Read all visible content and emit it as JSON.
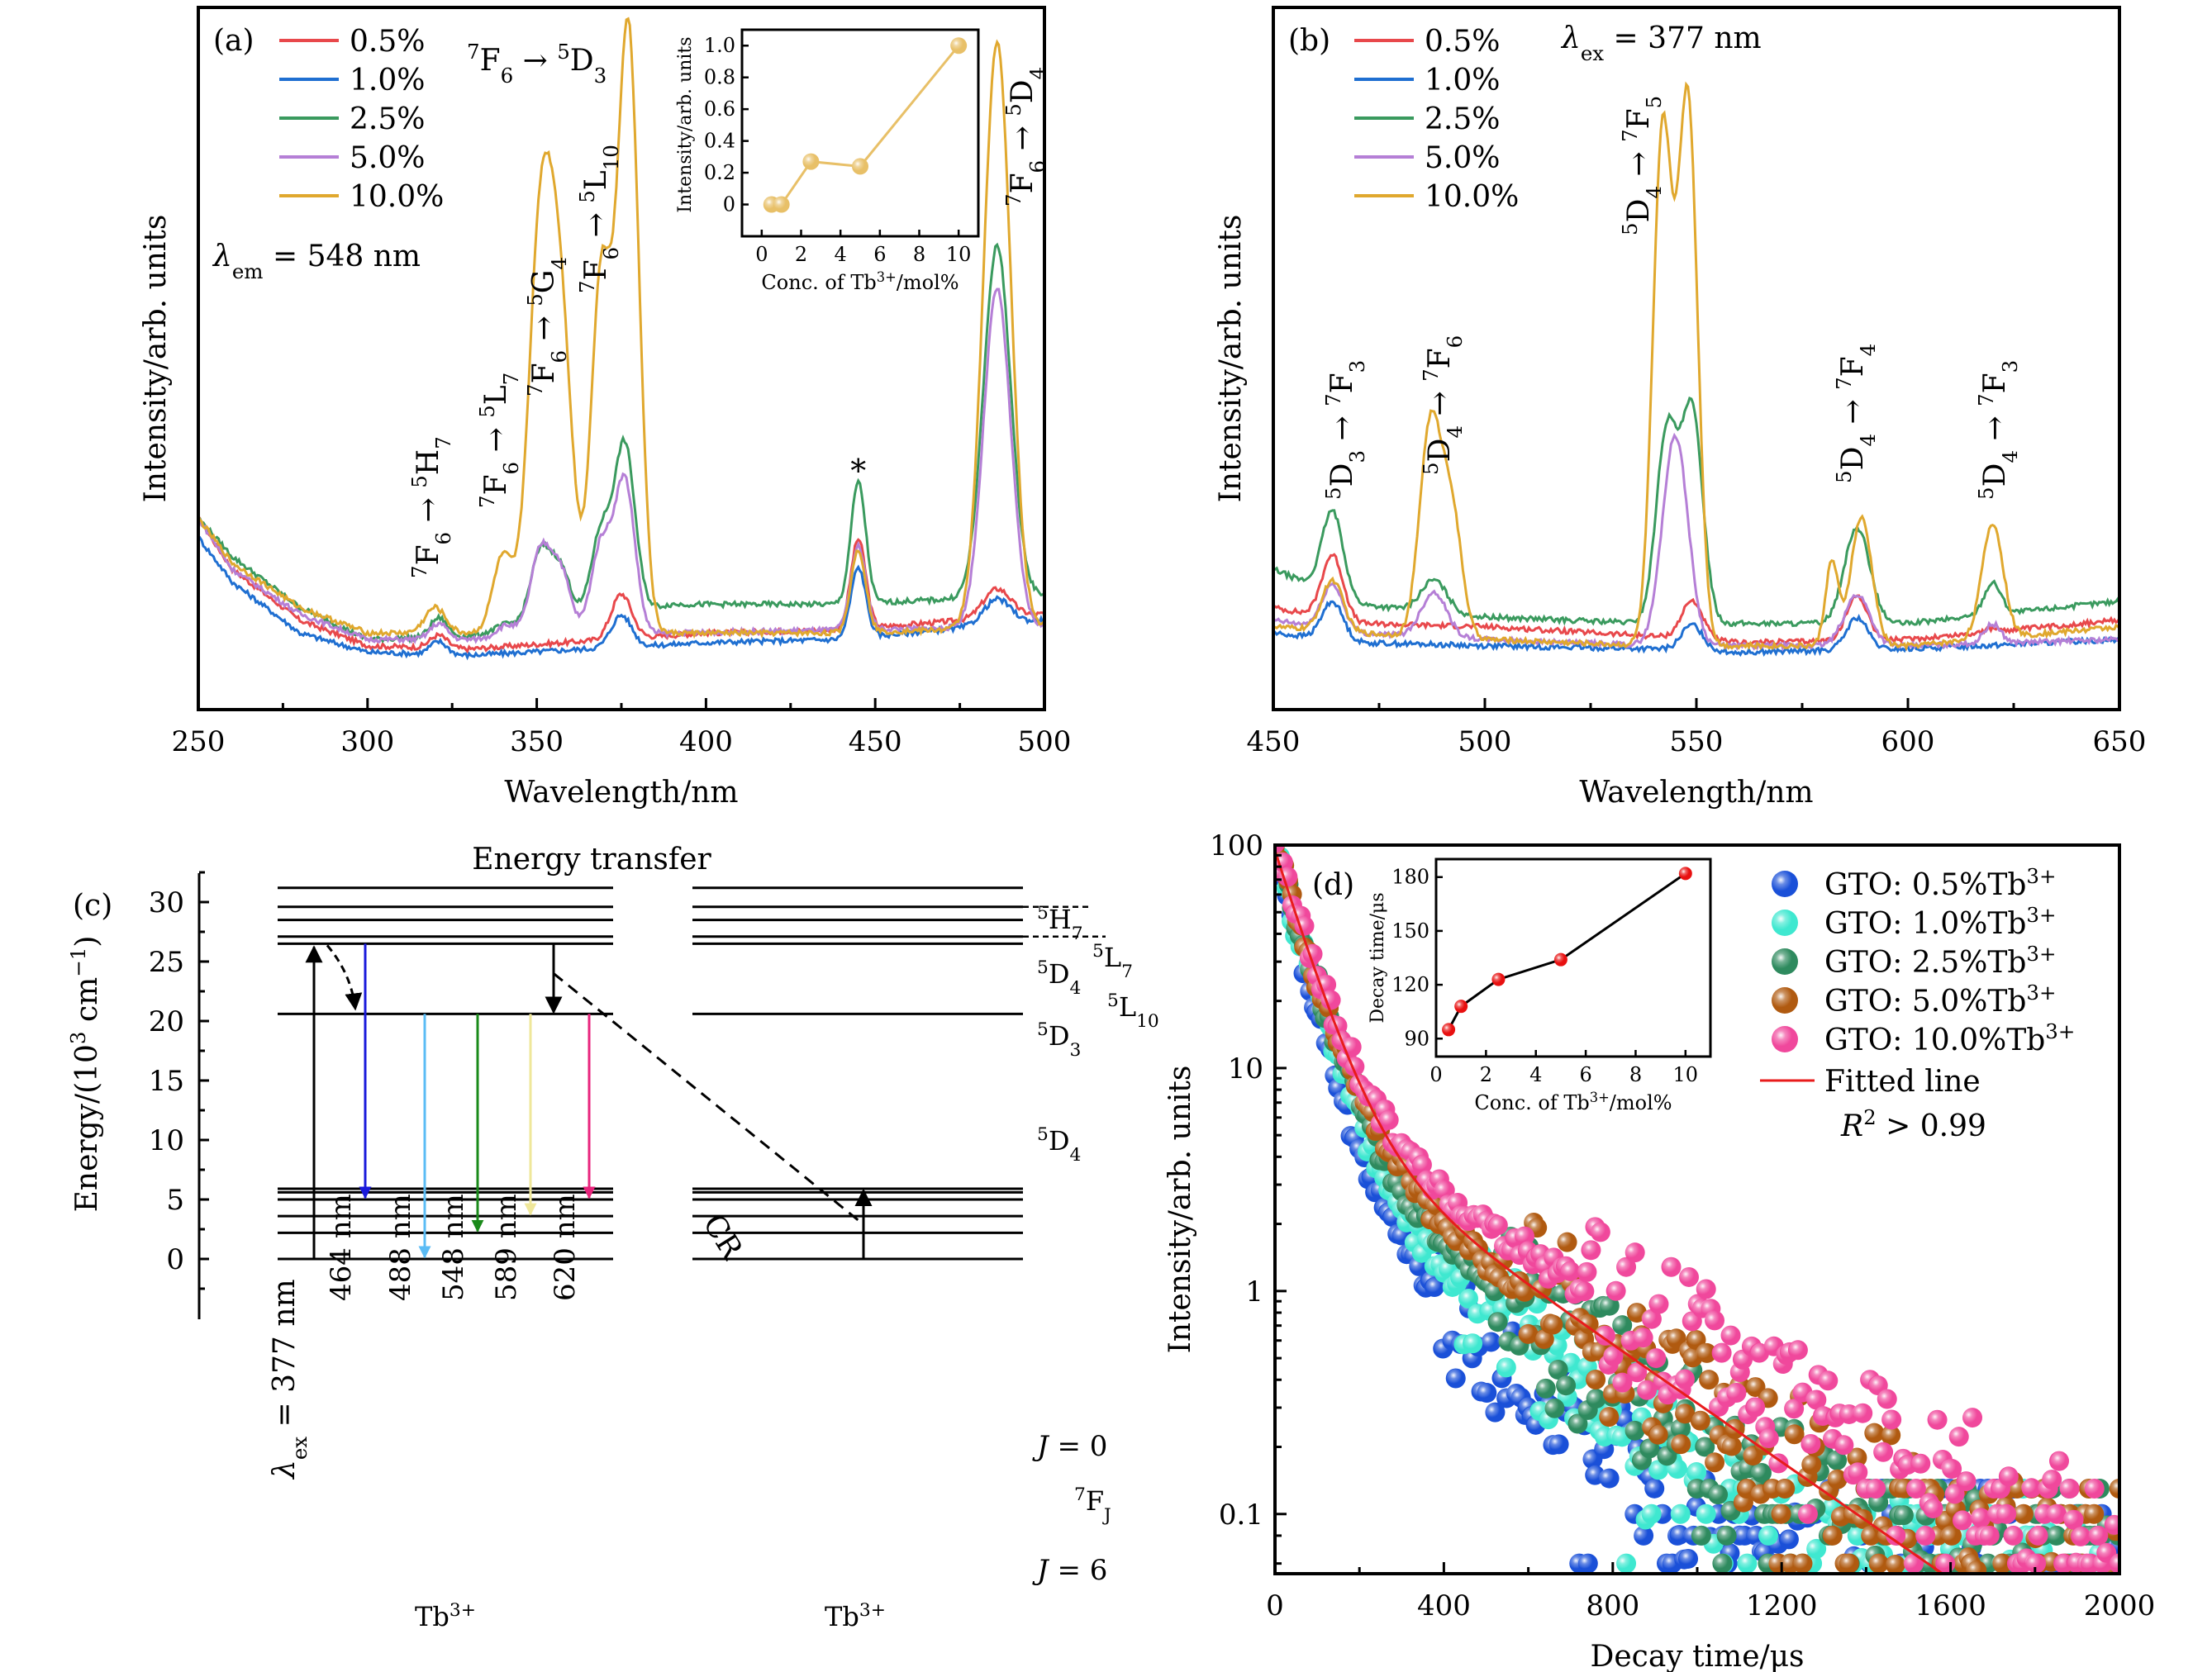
{
  "chart_data": [
    {
      "id": "a",
      "type": "line",
      "panel_label": "(a)",
      "title": "",
      "xlabel": "Wavelength/nm",
      "ylabel": "Intensity/arb. units",
      "xlim": [
        250,
        500
      ],
      "ylim": [
        0,
        1.1
      ],
      "xticks": [
        250,
        300,
        350,
        400,
        450,
        500
      ],
      "yticks_shown": false,
      "grid": false,
      "legend_position": "top-left",
      "annotation_lambda": "λem = 548 nm",
      "peak_labels": [
        {
          "text": "7F6 → 5H7",
          "x": 320
        },
        {
          "text": "7F6 → 5L7",
          "x": 340
        },
        {
          "text": "7F6 → 5G4",
          "x": 351
        },
        {
          "text": "7F6 → 5L10",
          "x": 369
        },
        {
          "text": "7F6 → 5D3",
          "x": 377
        },
        {
          "text": "7F6 → 5D4",
          "x": 486
        },
        {
          "text": "*",
          "x": 445
        }
      ],
      "series": [
        {
          "name": "0.5%",
          "color": "#e8484b",
          "baseline": [
            [
              250,
              0.3
            ],
            [
              260,
              0.22
            ],
            [
              280,
              0.14
            ],
            [
              300,
              0.1
            ],
            [
              330,
              0.095
            ],
            [
              400,
              0.12
            ],
            [
              440,
              0.125
            ],
            [
              500,
              0.15
            ]
          ],
          "peaks": [
            [
              321,
              0.02,
              2.5
            ],
            [
              375,
              0.07,
              3
            ],
            [
              445,
              0.14,
              2.2
            ],
            [
              486,
              0.045,
              4
            ]
          ]
        },
        {
          "name": "1.0%",
          "color": "#1f6fd1",
          "baseline": [
            [
              250,
              0.27
            ],
            [
              260,
              0.2
            ],
            [
              280,
              0.12
            ],
            [
              300,
              0.09
            ],
            [
              330,
              0.085
            ],
            [
              400,
              0.105
            ],
            [
              440,
              0.11
            ],
            [
              500,
              0.14
            ]
          ],
          "peaks": [
            [
              321,
              0.02,
              2.5
            ],
            [
              375,
              0.05,
              3
            ],
            [
              445,
              0.11,
              2.2
            ],
            [
              486,
              0.04,
              4
            ]
          ]
        },
        {
          "name": "2.5%",
          "color": "#3a9a5e",
          "baseline": [
            [
              250,
              0.3
            ],
            [
              260,
              0.24
            ],
            [
              280,
              0.16
            ],
            [
              300,
              0.11
            ],
            [
              330,
              0.115
            ],
            [
              390,
              0.165
            ],
            [
              440,
              0.165
            ],
            [
              500,
              0.18
            ]
          ],
          "peaks": [
            [
              321,
              0.03,
              2.5
            ],
            [
              341,
              0.01,
              3
            ],
            [
              351,
              0.11,
              3
            ],
            [
              357,
              0.08,
              3
            ],
            [
              369,
              0.13,
              3
            ],
            [
              376,
              0.26,
              3
            ],
            [
              445,
              0.19,
              2.2
            ],
            [
              486,
              0.55,
              4
            ]
          ]
        },
        {
          "name": "5.0%",
          "color": "#b57fd6",
          "baseline": [
            [
              250,
              0.3
            ],
            [
              260,
              0.22
            ],
            [
              280,
              0.15
            ],
            [
              300,
              0.11
            ],
            [
              330,
              0.11
            ],
            [
              390,
              0.12
            ],
            [
              440,
              0.125
            ],
            [
              500,
              0.13
            ]
          ],
          "peaks": [
            [
              321,
              0.025,
              2.5
            ],
            [
              341,
              0.02,
              3
            ],
            [
              351,
              0.13,
              3
            ],
            [
              357,
              0.1,
              3
            ],
            [
              369,
              0.14,
              3
            ],
            [
              376,
              0.24,
              3
            ],
            [
              445,
              0.13,
              2.2
            ],
            [
              486,
              0.53,
              4
            ]
          ]
        },
        {
          "name": "10.0%",
          "color": "#e0a82e",
          "baseline": [
            [
              250,
              0.3
            ],
            [
              260,
              0.23
            ],
            [
              280,
              0.16
            ],
            [
              300,
              0.12
            ],
            [
              330,
              0.12
            ],
            [
              390,
              0.12
            ],
            [
              440,
              0.12
            ],
            [
              500,
              0.13
            ]
          ],
          "peaks": [
            [
              320,
              0.04,
              3
            ],
            [
              340,
              0.12,
              3
            ],
            [
              351,
              0.6,
              3.5
            ],
            [
              357,
              0.47,
              3.5
            ],
            [
              369,
              0.55,
              3
            ],
            [
              377,
              0.95,
              3.2
            ],
            [
              445,
              0.13,
              2.2
            ],
            [
              486,
              0.92,
              4
            ]
          ]
        }
      ],
      "inset": {
        "type": "line",
        "xlabel": "Conc. of Tb3+/mol%",
        "ylabel": "Intensity/arb. units",
        "xlim": [
          -1,
          11
        ],
        "ylim": [
          -0.2,
          1.1
        ],
        "xticks": [
          0,
          2,
          4,
          6,
          8,
          10
        ],
        "yticks": [
          0,
          0.2,
          0.4,
          0.6,
          0.8,
          1.0
        ],
        "ytick_labels": [
          "0",
          "0.2",
          "0.4",
          "0.6",
          "0.8",
          "1.0"
        ],
        "color": "#e8c068",
        "x": [
          0.5,
          1.0,
          2.5,
          5.0,
          10.0
        ],
        "y": [
          0,
          0,
          0.27,
          0.24,
          1.0
        ]
      }
    },
    {
      "id": "b",
      "type": "line",
      "panel_label": "(b)",
      "xlabel": "Wavelength/nm",
      "ylabel": "Intensity/arb. units",
      "xlim": [
        450,
        650
      ],
      "ylim": [
        0,
        1.1
      ],
      "xticks": [
        450,
        500,
        550,
        600,
        650
      ],
      "yticks_shown": false,
      "grid": false,
      "legend_position": "top-left",
      "annotation_lambda": "λex = 377 nm",
      "peak_labels": [
        {
          "text": "5D3 → 7F3",
          "x": 464
        },
        {
          "text": "5D4 → 7F6",
          "x": 488
        },
        {
          "text": "5D4 → 7F5",
          "x": 545
        },
        {
          "text": "5D4 → 7F4",
          "x": 588
        },
        {
          "text": "5D4 → 7F3",
          "x": 620
        }
      ],
      "series": [
        {
          "name": "0.5%",
          "color": "#e8484b",
          "baseline": [
            [
              450,
              0.16
            ],
            [
              470,
              0.135
            ],
            [
              500,
              0.13
            ],
            [
              540,
              0.115
            ],
            [
              560,
              0.105
            ],
            [
              600,
              0.11
            ],
            [
              650,
              0.14
            ]
          ],
          "peaks": [
            [
              464,
              0.1,
              2.5
            ],
            [
              549,
              0.06,
              2.5
            ],
            [
              588,
              0.07,
              2.5
            ],
            [
              620,
              0.005,
              2
            ]
          ]
        },
        {
          "name": "1.0%",
          "color": "#1f6fd1",
          "baseline": [
            [
              450,
              0.12
            ],
            [
              470,
              0.105
            ],
            [
              500,
              0.1
            ],
            [
              540,
              0.095
            ],
            [
              560,
              0.09
            ],
            [
              600,
              0.095
            ],
            [
              650,
              0.11
            ]
          ],
          "peaks": [
            [
              464,
              0.06,
              2.5
            ],
            [
              549,
              0.04,
              2.5
            ],
            [
              588,
              0.05,
              2.5
            ]
          ]
        },
        {
          "name": "2.5%",
          "color": "#3a9a5e",
          "baseline": [
            [
              450,
              0.22
            ],
            [
              470,
              0.165
            ],
            [
              500,
              0.145
            ],
            [
              540,
              0.135
            ],
            [
              560,
              0.135
            ],
            [
              600,
              0.135
            ],
            [
              650,
              0.17
            ]
          ],
          "peaks": [
            [
              464,
              0.13,
              2.5
            ],
            [
              488,
              0.05,
              3
            ],
            [
              543,
              0.3,
              2.5
            ],
            [
              549,
              0.33,
              2.5
            ],
            [
              588,
              0.15,
              3
            ],
            [
              620,
              0.05,
              2
            ]
          ]
        },
        {
          "name": "5.0%",
          "color": "#b57fd6",
          "baseline": [
            [
              450,
              0.14
            ],
            [
              470,
              0.12
            ],
            [
              500,
              0.11
            ],
            [
              540,
              0.1
            ],
            [
              560,
              0.1
            ],
            [
              600,
              0.1
            ],
            [
              650,
              0.11
            ]
          ],
          "peaks": [
            [
              464,
              0.07,
              2.5
            ],
            [
              488,
              0.07,
              3
            ],
            [
              545,
              0.33,
              3
            ],
            [
              588,
              0.08,
              3
            ],
            [
              620,
              0.03,
              2
            ]
          ]
        },
        {
          "name": "10.0%",
          "color": "#e0a82e",
          "baseline": [
            [
              450,
              0.13
            ],
            [
              470,
              0.12
            ],
            [
              500,
              0.11
            ],
            [
              540,
              0.1
            ],
            [
              560,
              0.1
            ],
            [
              600,
              0.1
            ],
            [
              650,
              0.13
            ]
          ],
          "peaks": [
            [
              464,
              0.08,
              2.5
            ],
            [
              487,
              0.32,
              2.5
            ],
            [
              492,
              0.2,
              2.5
            ],
            [
              542,
              0.8,
              2.3
            ],
            [
              548,
              0.85,
              2.3
            ],
            [
              582,
              0.13,
              1.5
            ],
            [
              589,
              0.2,
              2.5
            ],
            [
              620,
              0.18,
              2.5
            ]
          ]
        }
      ]
    },
    {
      "id": "c",
      "type": "diagram",
      "panel_label": "(c)",
      "title": "Energy transfer",
      "ylabel": "Energy/(10^3 cm^-1)",
      "ylim": [
        -5,
        32.5
      ],
      "yticks": [
        0,
        5,
        10,
        15,
        20,
        25,
        30
      ],
      "ion_labels": [
        "Tb3+",
        "Tb3+"
      ],
      "levels": [
        {
          "name": "5H7",
          "energy": 31.2
        },
        {
          "name": "5L7",
          "energy": 29.6,
          "dashed_label": true
        },
        {
          "name": "5D4",
          "energy": 28.5
        },
        {
          "name": "5L10",
          "energy": 27.1,
          "dashed_label": true
        },
        {
          "name": "5D3",
          "energy": 26.5
        },
        {
          "name": "5D4",
          "energy": 20.6
        },
        {
          "name": "J = 0",
          "energy": 5.9
        },
        {
          "name": "",
          "energy": 5.6
        },
        {
          "name": "",
          "energy": 5.0
        },
        {
          "name": "7FJ",
          "energy": 3.6
        },
        {
          "name": "",
          "energy": 2.2
        },
        {
          "name": "J = 6",
          "energy": 0
        }
      ],
      "excitation": {
        "label": "λex = 377 nm",
        "from": 0,
        "to": 26.5
      },
      "emissions": [
        {
          "label": "464 nm",
          "from": 26.5,
          "to": 5.0,
          "color": "#1a1adb"
        },
        {
          "label": "488 nm",
          "from": 20.6,
          "to": 0,
          "color": "#5bbcf5"
        },
        {
          "label": "548 nm",
          "from": 20.6,
          "to": 2.2,
          "color": "#1a8a1a"
        },
        {
          "label": "589 nm",
          "from": 20.6,
          "to": 3.6,
          "color": "#efe79a"
        },
        {
          "label": "620 nm",
          "from": 20.6,
          "to": 5.0,
          "color": "#e8247c"
        }
      ],
      "cross_relaxation_label": "CR"
    },
    {
      "id": "d",
      "type": "scatter",
      "panel_label": "(d)",
      "xlabel": "Decay time/μs",
      "ylabel": "Intensity/arb. units",
      "xlim": [
        0,
        2000
      ],
      "ylim": [
        0.054,
        100
      ],
      "yscale": "log",
      "xticks": [
        0,
        400,
        800,
        1200,
        1600,
        2000
      ],
      "yticks": [
        0.1,
        1,
        10,
        100
      ],
      "ytick_labels": [
        "0.1",
        "1",
        "10",
        "100"
      ],
      "legend_position": "top-right",
      "series": [
        {
          "name": "GTO: 0.5%Tb3+",
          "color": "#1a50d8",
          "A1": 90,
          "t1": 55,
          "A2": 4.5,
          "t2": 230,
          "floor": 0.12
        },
        {
          "name": "GTO: 1.0%Tb3+",
          "color": "#3fe8d0",
          "A1": 90,
          "t1": 62,
          "A2": 5,
          "t2": 260,
          "floor": 0.14
        },
        {
          "name": "GTO: 2.5%Tb3+",
          "color": "#2e8a5e",
          "A1": 90,
          "t1": 65,
          "A2": 5.5,
          "t2": 300,
          "floor": 0.13
        },
        {
          "name": "GTO: 5.0%Tb3+",
          "color": "#b05a10",
          "A1": 90,
          "t1": 68,
          "A2": 6,
          "t2": 330,
          "floor": 0.13
        },
        {
          "name": "GTO: 10.0%Tb3+",
          "color": "#f0489c",
          "A1": 90,
          "t1": 70,
          "A2": 7,
          "t2": 380,
          "floor": 0.15
        }
      ],
      "fit_line": {
        "name": "Fitted line",
        "color": "#e81c1c",
        "A1": 88,
        "t1": 70,
        "A2": 6.5,
        "t2": 330
      },
      "annotation": "R2 > 0.99",
      "inset": {
        "type": "line",
        "xlabel": "Conc. of Tb3+/mol%",
        "ylabel": "Decay time/μs",
        "xlim": [
          0,
          11
        ],
        "ylim": [
          80,
          190
        ],
        "xticks": [
          0,
          2,
          4,
          6,
          8,
          10
        ],
        "yticks": [
          90,
          120,
          150,
          180
        ],
        "color": "#e81010",
        "x": [
          0.5,
          1.0,
          2.5,
          5.0,
          10.0
        ],
        "y": [
          95,
          108,
          123,
          134,
          182
        ]
      }
    }
  ]
}
